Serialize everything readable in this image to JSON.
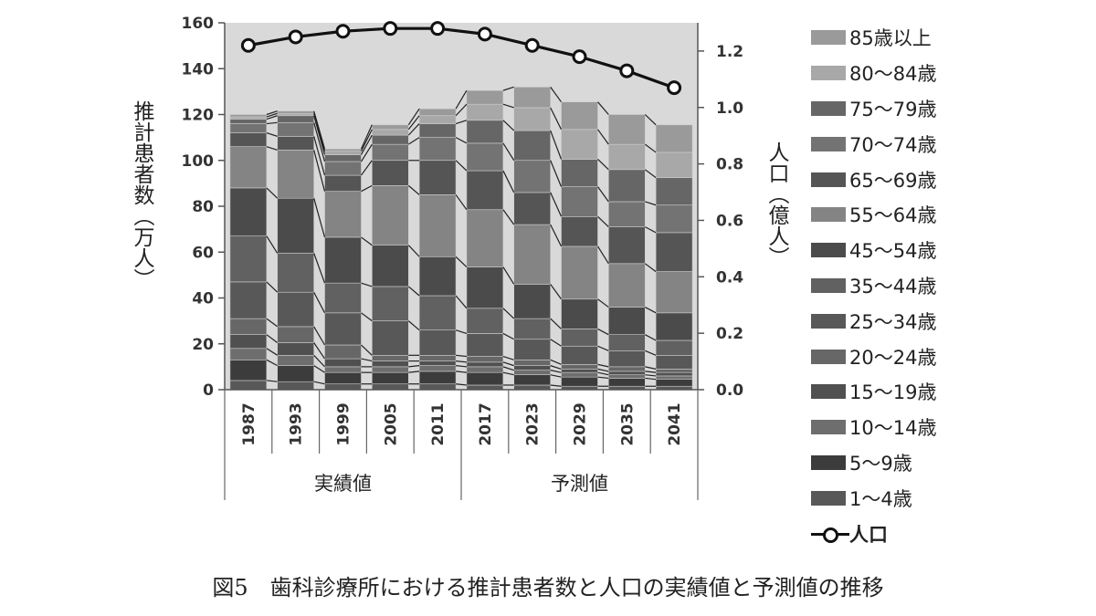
{
  "caption": "図5　歯科診療所における推計患者数と人口の実績値と予測値の推移",
  "chart_data": {
    "type": "bar",
    "stacked": true,
    "categories": [
      "1987",
      "1993",
      "1999",
      "2005",
      "2011",
      "2017",
      "2023",
      "2029",
      "2035",
      "2041"
    ],
    "category_groups": [
      {
        "label": "実績値",
        "categories": [
          "1987",
          "1993",
          "1999",
          "2005",
          "2011"
        ]
      },
      {
        "label": "予測値",
        "categories": [
          "2017",
          "2023",
          "2029",
          "2035",
          "2041"
        ]
      }
    ],
    "ylabel_left": "推計患者数（万人）",
    "ylabel_right": "人口（億人）",
    "y_left": {
      "range": [
        0,
        160
      ],
      "ticks": [
        "0",
        "20",
        "40",
        "60",
        "80",
        "100",
        "120",
        "140",
        "160"
      ]
    },
    "y_right": {
      "range": [
        0,
        1.3
      ],
      "ticks": [
        "0.0",
        "0.2",
        "0.4",
        "0.6",
        "0.8",
        "1.0",
        "1.2"
      ]
    },
    "series": [
      {
        "name": "1～4歳",
        "color": "#585858",
        "values": [
          4,
          3.5,
          2.5,
          2.5,
          2.5,
          2,
          2,
          1.5,
          1.5,
          1.5
        ]
      },
      {
        "name": "5～9歳",
        "color": "#3c3c3c",
        "values": [
          9,
          7,
          5,
          5,
          5.5,
          5.5,
          4.5,
          4,
          3.5,
          3
        ]
      },
      {
        "name": "10～14歳",
        "color": "#6e6e6e",
        "values": [
          5,
          4.5,
          2.5,
          2.5,
          2.5,
          2.5,
          2,
          2,
          1.5,
          1.5
        ]
      },
      {
        "name": "15～19歳",
        "color": "#505050",
        "values": [
          6,
          5.5,
          3.5,
          2.5,
          2,
          2,
          2,
          1.5,
          1.5,
          1.5
        ]
      },
      {
        "name": "20～24歳",
        "color": "#676767",
        "values": [
          7,
          7,
          6,
          2.5,
          2.5,
          2.5,
          2.5,
          2,
          2,
          1.5
        ]
      },
      {
        "name": "25～34歳",
        "color": "#585858",
        "values": [
          16,
          15,
          14,
          15,
          11,
          10,
          9,
          8,
          7,
          6
        ]
      },
      {
        "name": "35～44歳",
        "color": "#616161",
        "values": [
          20,
          17,
          13,
          15,
          15,
          11,
          9,
          7.5,
          7,
          6.5
        ]
      },
      {
        "name": "45～54歳",
        "color": "#4b4b4b",
        "values": [
          21,
          24,
          20,
          18,
          17,
          18,
          15,
          13,
          12,
          12
        ]
      },
      {
        "name": "55～64歳",
        "color": "#848484",
        "values": [
          18,
          21,
          20,
          26,
          27,
          25,
          26,
          23,
          19,
          18
        ]
      },
      {
        "name": "65～69歳",
        "color": "#555555",
        "values": [
          6,
          6,
          7,
          11,
          15,
          17,
          14,
          13,
          16,
          17
        ]
      },
      {
        "name": "70～74歳",
        "color": "#737373",
        "values": [
          4,
          6,
          6,
          7,
          10,
          12,
          14,
          13,
          11,
          12
        ]
      },
      {
        "name": "75～79歳",
        "color": "#666666",
        "values": [
          2,
          3,
          3,
          4,
          6,
          10,
          13,
          12,
          14,
          12
        ]
      },
      {
        "name": "80～84歳",
        "color": "#a8a8a8",
        "values": [
          1,
          1,
          1.5,
          2.5,
          3.5,
          7,
          10,
          13,
          11,
          11
        ]
      },
      {
        "name": "85歳以上",
        "color": "#9a9a9a",
        "values": [
          1,
          1,
          1,
          2,
          3,
          6,
          9,
          12,
          13,
          12
        ]
      }
    ],
    "line_series": {
      "name": "人口",
      "axis": "right",
      "values": [
        1.22,
        1.25,
        1.27,
        1.28,
        1.28,
        1.26,
        1.22,
        1.18,
        1.13,
        1.07
      ]
    },
    "grid": false,
    "legend_position": "right"
  }
}
